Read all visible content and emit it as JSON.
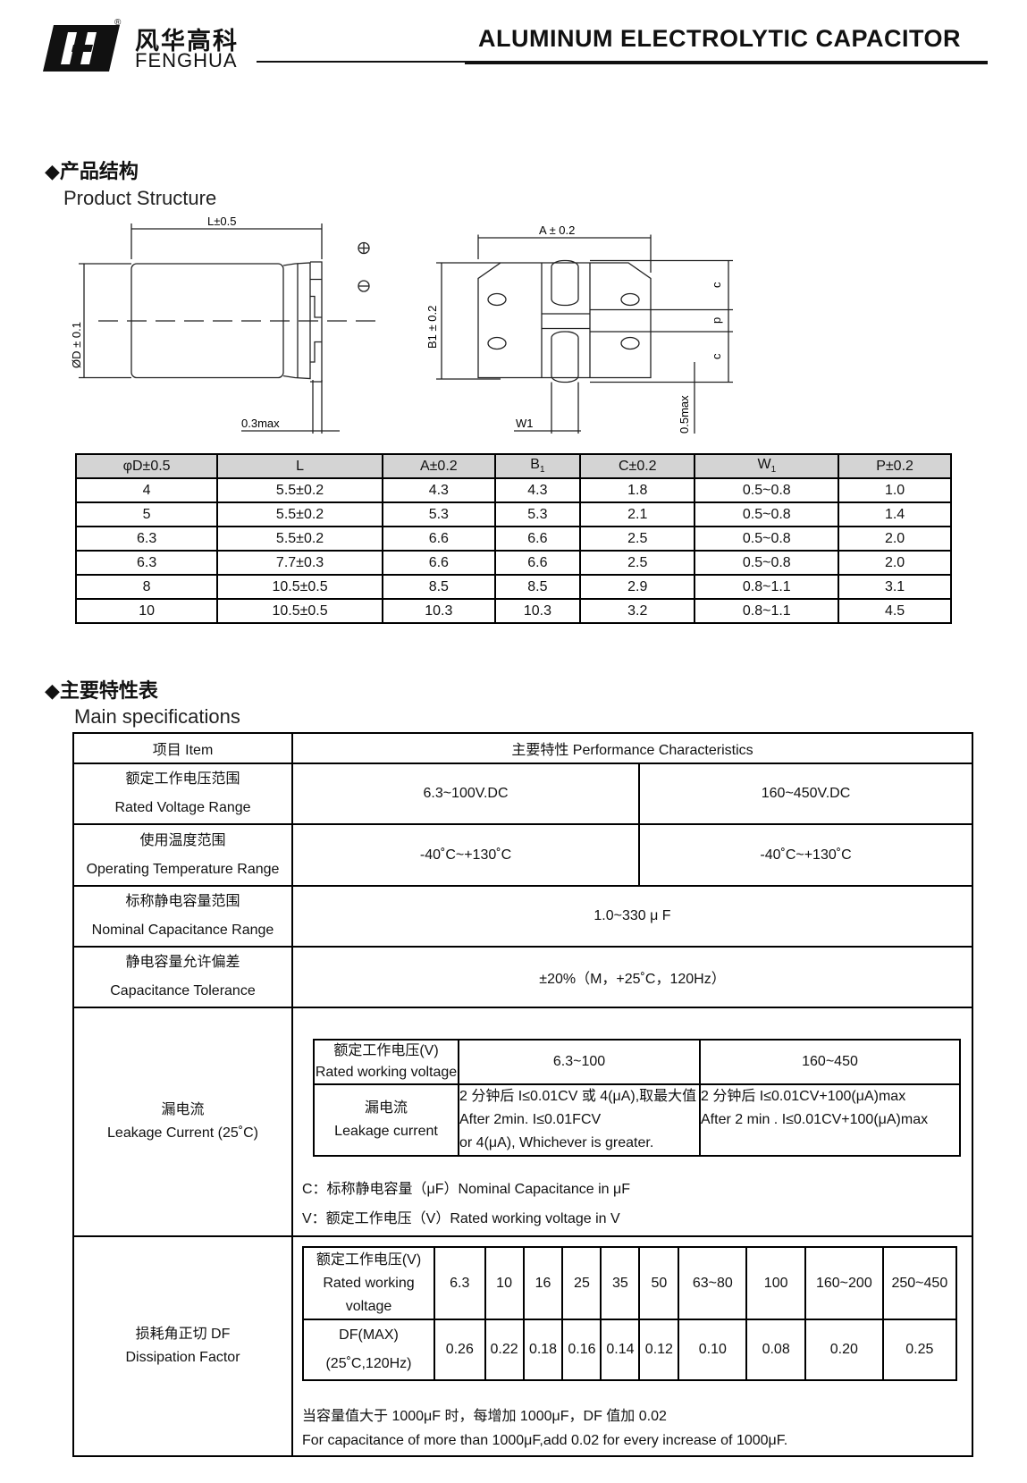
{
  "header": {
    "brand_cn": "风华高科",
    "brand_en": "FENGHUA",
    "registered": "®",
    "title": "ALUMINUM ELECTROLYTIC CAPACITOR"
  },
  "structure": {
    "heading_cn": "◆产品结构",
    "heading_en": "Product Structure",
    "drawing_labels": {
      "L": "L±0.5",
      "D": "ØD ± 0.1",
      "gap": "0.3max",
      "A": "A ± 0.2",
      "B1": "B1 ± 0.2",
      "W1": "W1",
      "c": "c",
      "p": "p",
      "h": "0.5max"
    }
  },
  "dimensions": {
    "headers": [
      "φD±0.5",
      "L",
      "A±0.2",
      "B",
      "C±0.2",
      "W",
      "P±0.2"
    ],
    "sub": {
      "3": "1",
      "5": "1"
    },
    "rows": [
      [
        "4",
        "5.5±0.2",
        "4.3",
        "4.3",
        "1.8",
        "0.5~0.8",
        "1.0"
      ],
      [
        "5",
        "5.5±0.2",
        "5.3",
        "5.3",
        "2.1",
        "0.5~0.8",
        "1.4"
      ],
      [
        "6.3",
        "5.5±0.2",
        "6.6",
        "6.6",
        "2.5",
        "0.5~0.8",
        "2.0"
      ],
      [
        "6.3",
        "7.7±0.3",
        "6.6",
        "6.6",
        "2.5",
        "0.5~0.8",
        "2.0"
      ],
      [
        "8",
        "10.5±0.5",
        "8.5",
        "8.5",
        "2.9",
        "0.8~1.1",
        "3.1"
      ],
      [
        "10",
        "10.5±0.5",
        "10.3",
        "10.3",
        "3.2",
        "0.8~1.1",
        "4.5"
      ]
    ]
  },
  "specs": {
    "heading_cn": "◆主要特性表",
    "heading_en": "Main specifications",
    "col_item": "项目 Item",
    "col_perf": "主要特性 Performance Characteristics",
    "voltage": {
      "cn": "额定工作电压范围",
      "en": "Rated Voltage Range",
      "low": "6.3~100V.DC",
      "high": "160~450V.DC"
    },
    "temp": {
      "cn": "使用温度范围",
      "en": "Operating Temperature Range",
      "low": "-40˚C~+130˚C",
      "high": "-40˚C~+130˚C"
    },
    "cap": {
      "cn": "标称静电容量范围",
      "en": "Nominal Capacitance Range",
      "value": "1.0~330 μ F"
    },
    "tol": {
      "cn": "静电容量允许偏差",
      "en": "Capacitance Tolerance",
      "value": "±20%（M，+25˚C，120Hz）"
    },
    "leak": {
      "cn": "漏电流",
      "en": "Leakage Current (25˚C)",
      "v_cn": "额定工作电压(V)",
      "v_en": "Rated working voltage",
      "v_low": "6.3~100",
      "v_high": "160~450",
      "l_cn": "漏电流",
      "l_en": "Leakage current",
      "low_lines": [
        "2 分钟后 I≤0.01CV 或 4(μA),取最大值",
        "After 2min. I≤0.01FCV",
        "or 4(μA), Whichever is greater."
      ],
      "high_lines": [
        "2 分钟后 I≤0.01CV+100(μA)max",
        "After 2 min . I≤0.01CV+100(μA)max"
      ],
      "note_c": "C：标称静电容量（μF）Nominal Capacitance in μF",
      "note_v": "V：额定工作电压（V）Rated working voltage in V"
    },
    "df": {
      "cn": "损耗角正切 DF",
      "en": "Dissipation Factor",
      "v_lines": [
        "额定工作电压(V)",
        "Rated working",
        "voltage"
      ],
      "df_lines": [
        "DF(MAX)",
        "(25˚C,120Hz)"
      ],
      "voltages": [
        "6.3",
        "10",
        "16",
        "25",
        "35",
        "50",
        "63~80",
        "100",
        "160~200",
        "250~450"
      ],
      "values": [
        "0.26",
        "0.22",
        "0.18",
        "0.16",
        "0.14",
        "0.12",
        "0.10",
        "0.08",
        "0.20",
        "0.25"
      ],
      "note_cn": "当容量值大于 1000μF 时，每增加 1000μF，DF 值加 0.02",
      "note_en": "For capacitance of more than 1000μF,add 0.02 for every increase of 1000μF."
    }
  }
}
